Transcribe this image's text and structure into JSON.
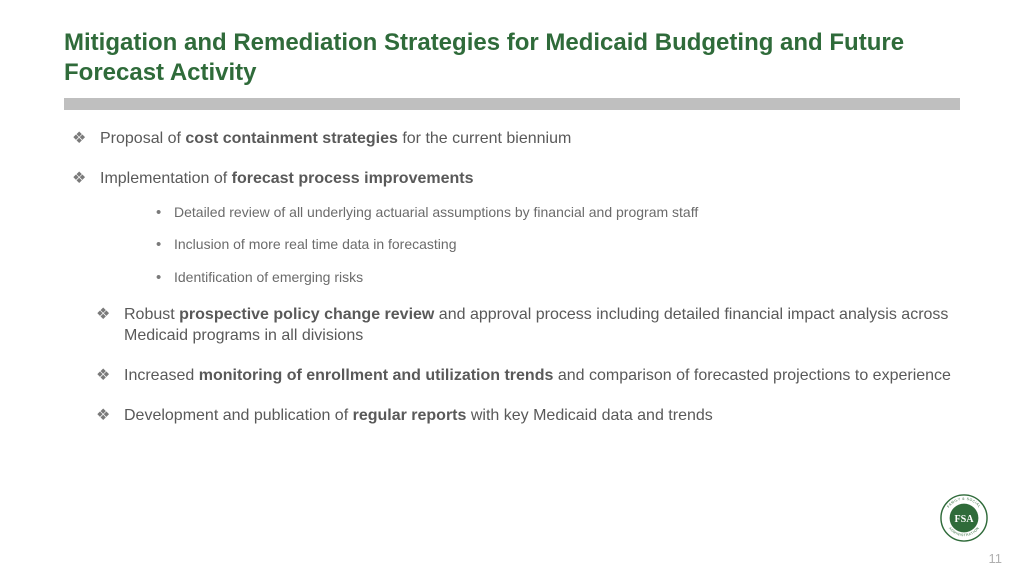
{
  "colors": {
    "title": "#2f6b3a",
    "divider": "#bfbfbf",
    "body_text": "#595959",
    "bullet_marker": "#7a7a7a",
    "sub_text": "#6b6b6b",
    "logo_ring": "#2f6b3a",
    "logo_fill": "#2f6b3a",
    "logo_text": "#ffffff"
  },
  "typography": {
    "title_fontsize": 24,
    "body_fontsize": 16,
    "sub_fontsize": 14
  },
  "title": "Mitigation and Remediation Strategies for Medicaid Budgeting and Future Forecast Activity",
  "bullets": [
    {
      "pre": "Proposal of ",
      "bold": "cost containment strategies",
      "post": " for the current biennium",
      "indent": 1
    },
    {
      "pre": "Implementation of ",
      "bold": "forecast process improvements",
      "post": "",
      "indent": 1,
      "sub": [
        "Detailed review of all underlying actuarial assumptions by financial and program staff",
        "Inclusion of more real time data in forecasting",
        "Identification of emerging risks"
      ]
    },
    {
      "pre": "Robust ",
      "bold": "prospective policy change review",
      "post": " and approval process including detailed financial impact analysis across Medicaid programs in all divisions",
      "indent": 2
    },
    {
      "pre": "Increased ",
      "bold": "monitoring of enrollment and utilization trends",
      "post": " and comparison of forecasted projections to experience",
      "indent": 2
    },
    {
      "pre": "Development and publication of ",
      "bold": "regular reports",
      "post": " with key Medicaid data and trends",
      "indent": 2
    }
  ],
  "logo": {
    "label": "FSA",
    "ring_text_top": "FAMILY & SOCIAL",
    "ring_text_bottom": "ADMINISTRATION"
  },
  "page_number": "11"
}
